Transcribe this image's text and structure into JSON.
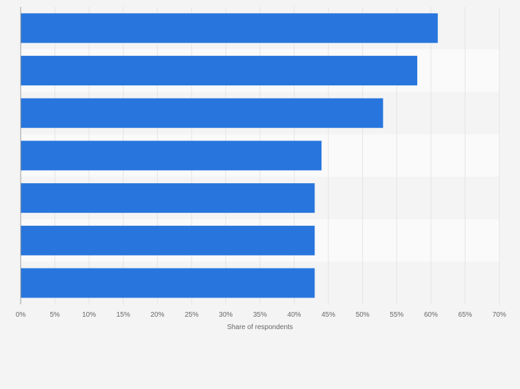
{
  "colors": {
    "page_background": "#f4f4f4",
    "band_light": "#fafafa",
    "band_dark": "#f4f4f4",
    "gridline": "#e4e4e4",
    "axis_line": "#9a9a9a",
    "bar": "#2876dd",
    "tick_text": "#666666"
  },
  "chart_data": {
    "type": "bar",
    "orientation": "horizontal",
    "title": "",
    "xlabel": "Share of respondents",
    "ylabel": "",
    "categories": [
      "",
      "",
      "",
      "",
      "",
      "",
      ""
    ],
    "values": [
      61,
      58,
      53,
      44,
      43,
      43,
      43
    ],
    "unit": "%",
    "xlim": [
      0,
      70
    ],
    "x_ticks": [
      0,
      5,
      10,
      15,
      20,
      25,
      30,
      35,
      40,
      45,
      50,
      55,
      60,
      65,
      70
    ],
    "x_tick_labels": [
      "0%",
      "5%",
      "10%",
      "15%",
      "20%",
      "25%",
      "30%",
      "35%",
      "40%",
      "45%",
      "50%",
      "55%",
      "60%",
      "65%",
      "70%"
    ],
    "grid": true,
    "legend": "none"
  }
}
